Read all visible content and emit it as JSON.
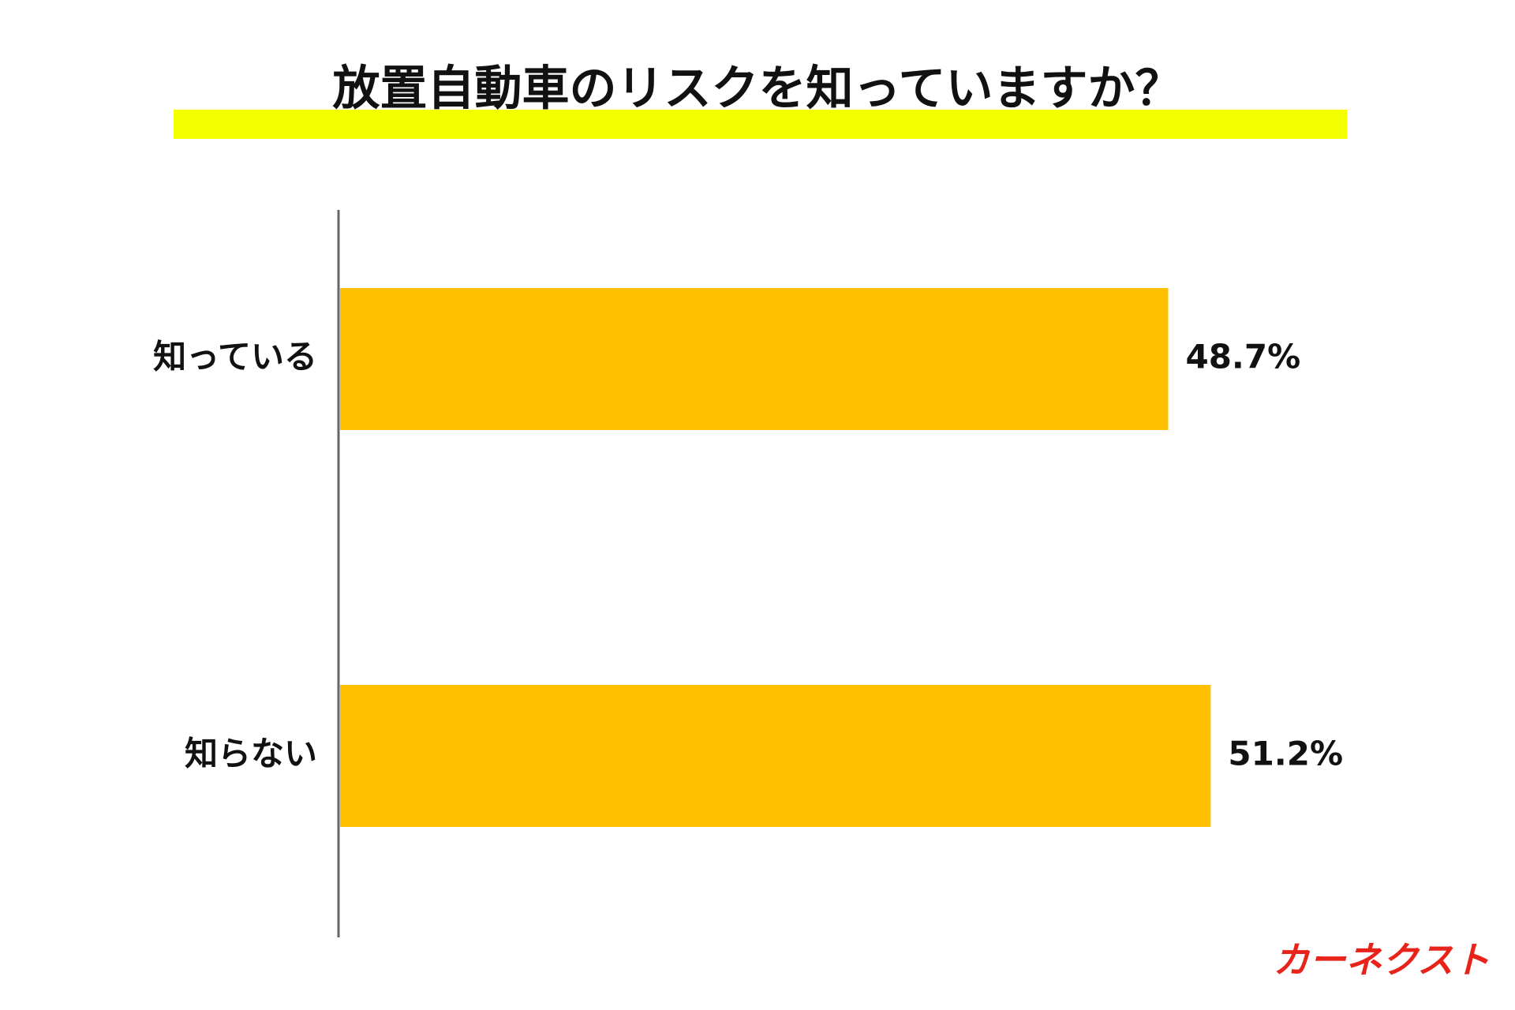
{
  "chart_data": {
    "type": "bar",
    "orientation": "horizontal",
    "title": "放置自動車のリスクを知っていますか？",
    "categories": [
      "知っている",
      "知らない"
    ],
    "values": [
      48.7,
      51.2
    ],
    "value_labels": [
      "48.7%",
      "51.2%"
    ],
    "color": "#ffc000",
    "brand": "カーネクスト"
  }
}
